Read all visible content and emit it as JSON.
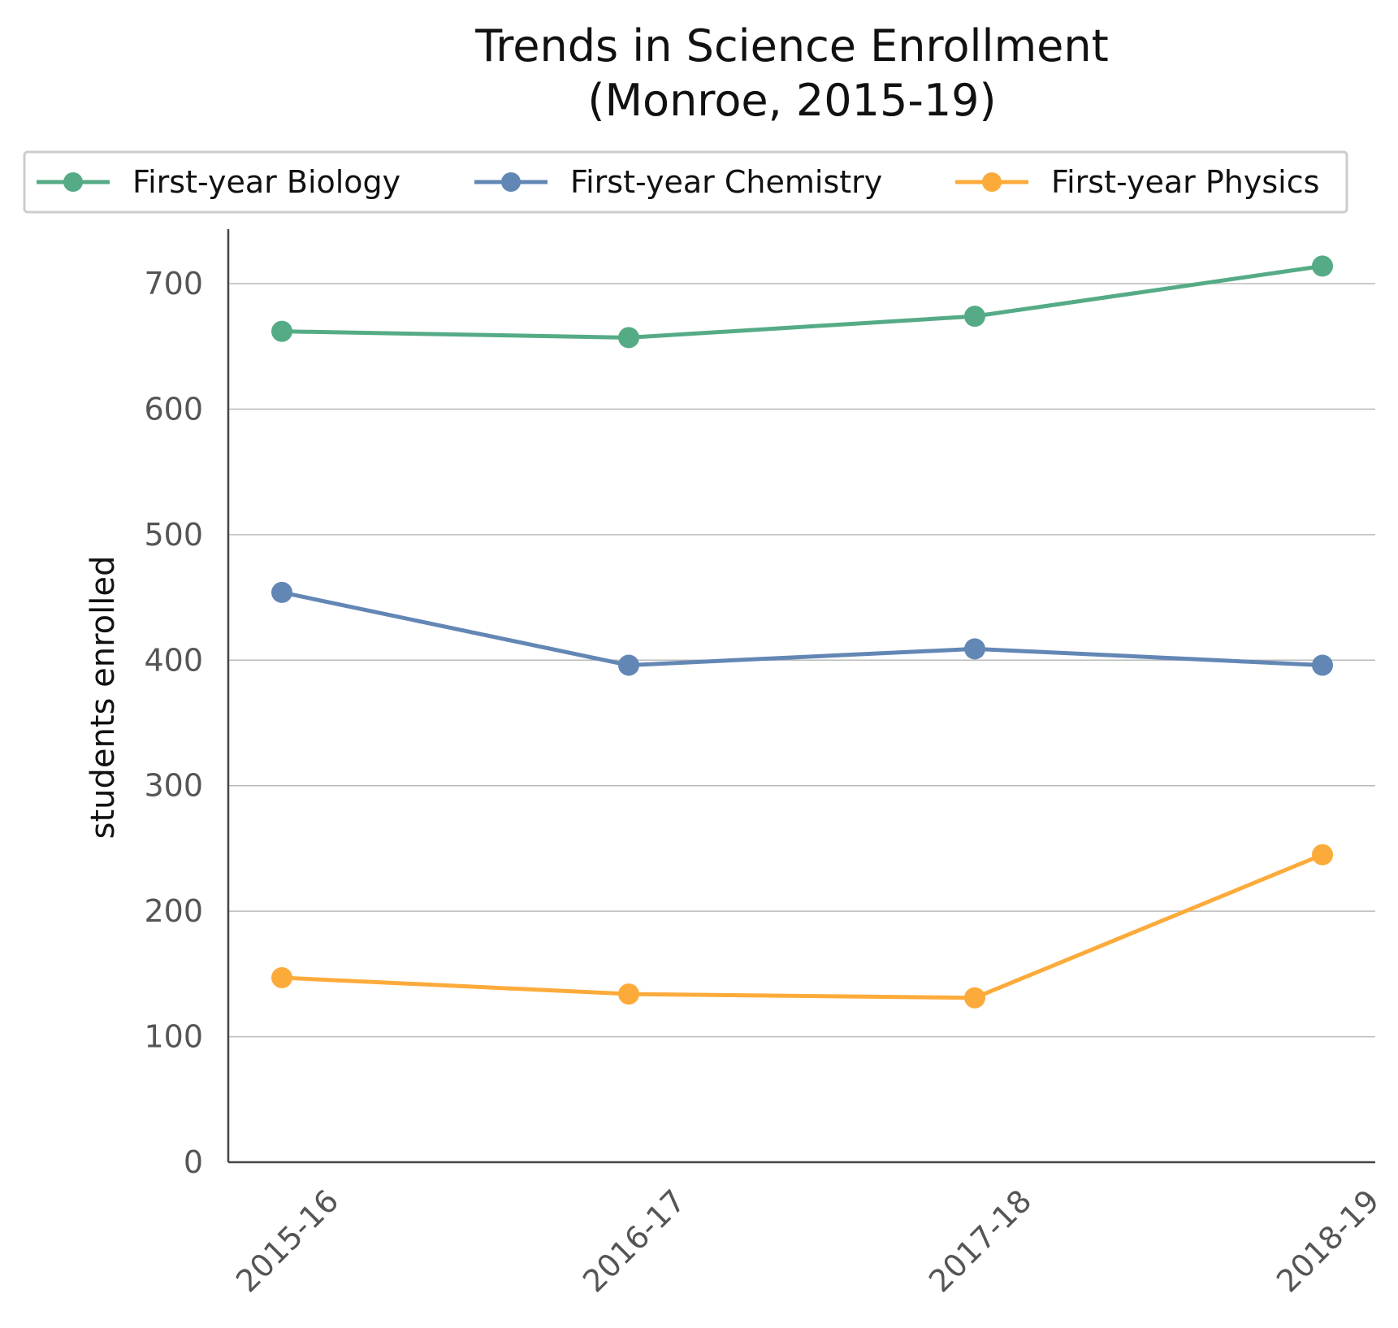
{
  "chart_data": {
    "type": "line",
    "title": [
      "Trends in Science Enrollment",
      "(Monroe, 2015-19)"
    ],
    "xlabel": "",
    "ylabel": "students enrolled",
    "categories": [
      "2015-16",
      "2016-17",
      "2017-18",
      "2018-19"
    ],
    "ylim": [
      0,
      740
    ],
    "yticks": [
      0,
      100,
      200,
      300,
      400,
      500,
      600,
      700
    ],
    "grid": "horizontal",
    "legend_position": "top",
    "series": [
      {
        "name": "First-year Biology",
        "color": "#55ab85",
        "values": [
          662,
          657,
          674,
          714
        ]
      },
      {
        "name": "First-year Chemistry",
        "color": "#6387b5",
        "values": [
          454,
          396,
          409,
          396
        ]
      },
      {
        "name": "First-year Physics",
        "color": "#fcab3b",
        "values": [
          147,
          134,
          131,
          245
        ]
      }
    ]
  }
}
